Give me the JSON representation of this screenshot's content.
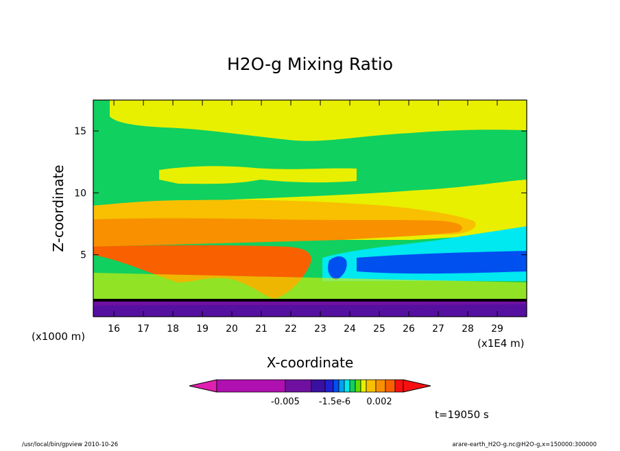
{
  "chart_data": {
    "type": "heatmap",
    "title": "H2O-g Mixing Ratio",
    "xlabel": "X-coordinate",
    "ylabel": "Z-coordinate",
    "x_unit_label": "(x1E4 m)",
    "y_unit_label": "(x1000 m)",
    "xlim": [
      15.3,
      30.0
    ],
    "ylim": [
      0,
      17.5
    ],
    "x_ticks": [
      16,
      17,
      18,
      19,
      20,
      21,
      22,
      23,
      24,
      25,
      26,
      27,
      28,
      29
    ],
    "y_ticks": [
      5,
      10,
      15
    ],
    "x_tick_labels": [
      "16",
      "17",
      "18",
      "19",
      "20",
      "21",
      "22",
      "23",
      "24",
      "25",
      "26",
      "27",
      "28",
      "29"
    ],
    "y_tick_labels": [
      "5",
      "10",
      "15"
    ],
    "colorbar": {
      "colors": [
        "#e020b0",
        "#b010b0",
        "#7010a0",
        "#3a10a0",
        "#2020d0",
        "#0050f0",
        "#00a0f0",
        "#00e8f0",
        "#10d060",
        "#60e000",
        "#e8f000",
        "#f8c000",
        "#f89000",
        "#f86000",
        "#f81010"
      ],
      "tick_labels": [
        "-0.005",
        "-1.5e-6",
        "0.002"
      ]
    },
    "time_label": "t=19050 s",
    "footer_left": "/usr/local/bin/gpview  2010-10-26",
    "footer_right": "arare-earth_H2O-g.nc@H2O-g,x=150000:300000"
  }
}
